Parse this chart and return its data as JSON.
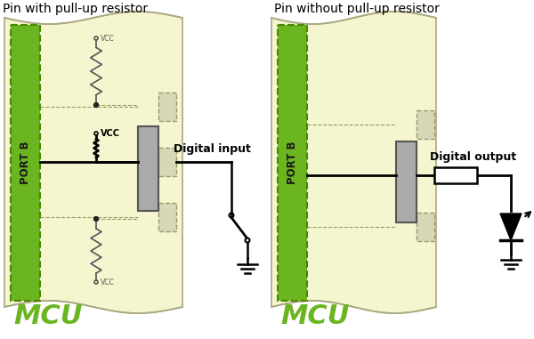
{
  "title_left": "Pin with pull-up resistor",
  "title_right": "Pin without pull-up resistor",
  "mcu_text": "MCU",
  "port_text": "PORT B",
  "bg_body": "#f5f5d0",
  "bg_white": "#ffffff",
  "green_color": "#6ab520",
  "green_edge": "#4a8800",
  "chip_color": "#aaaaaa",
  "chip_edge": "#555555",
  "wire_color": "#000000",
  "title_color": "#000000",
  "mcu_text_color": "#6ab520",
  "dashed_color": "#aaaaaa",
  "dashed_box_color": "#ccccaa",
  "resistor_small_color": "#555555",
  "vcc_label_color": "#333333"
}
